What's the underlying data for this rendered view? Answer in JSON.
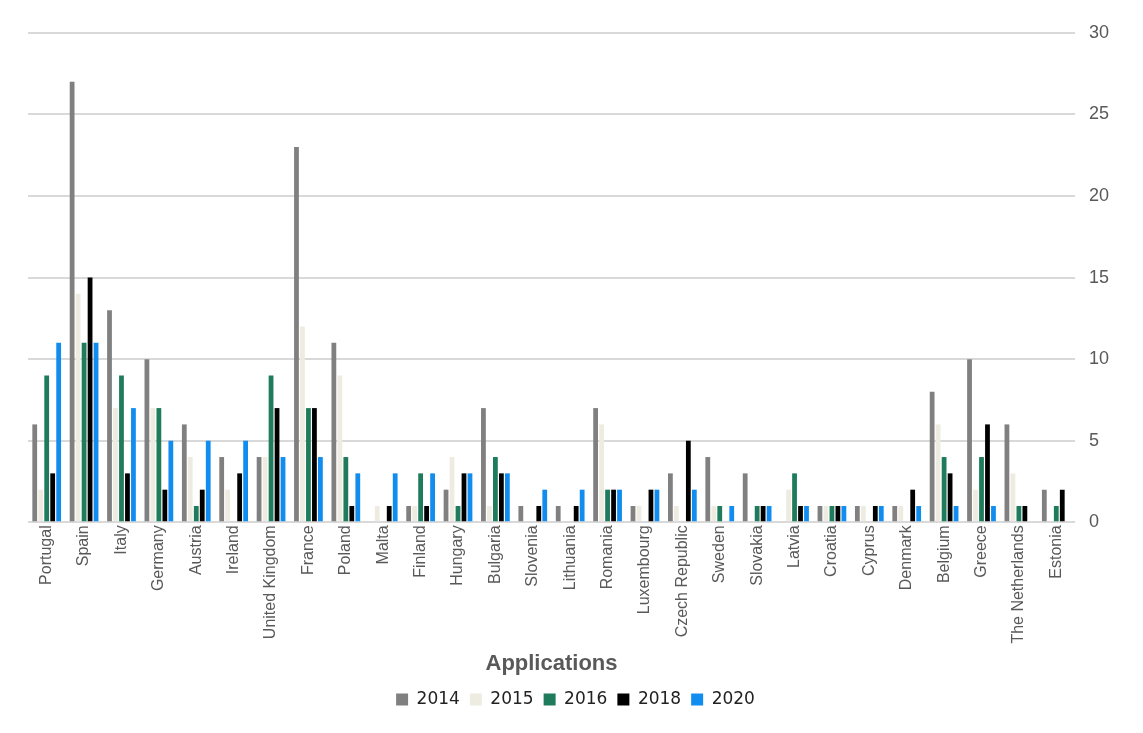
{
  "chart_data": {
    "type": "bar",
    "xlabel": "Applications",
    "categories": [
      "Portugal",
      "Spain",
      "Italy",
      "Germany",
      "Austria",
      "Ireland",
      "United Kingdom",
      "France",
      "Poland",
      "Malta",
      "Finland",
      "Hungary",
      "Bulgaria",
      "Slovenia",
      "Lithuania",
      "Romania",
      "Luxembourg",
      "Czech Republic",
      "Sweden",
      "Slovakia",
      "Latvia",
      "Croatia",
      "Cyprus",
      "Denmark",
      "Belgium",
      "Greece",
      "The Netherlands",
      "Estonia"
    ],
    "series": [
      {
        "name": "2014",
        "color": "#808080",
        "values": [
          6,
          27,
          13,
          10,
          6,
          4,
          4,
          23,
          11,
          0,
          1,
          2,
          7,
          1,
          1,
          7,
          1,
          3,
          4,
          3,
          0,
          1,
          1,
          1,
          8,
          10,
          6,
          2
        ]
      },
      {
        "name": "2015",
        "color": "#eeece1",
        "values": [
          2,
          14,
          7,
          7,
          4,
          2,
          4,
          12,
          9,
          1,
          1,
          4,
          1,
          0,
          0,
          6,
          1,
          1,
          1,
          0,
          2,
          1,
          1,
          1,
          6,
          2,
          3,
          0
        ]
      },
      {
        "name": "2016",
        "color": "#1e7b5b",
        "values": [
          9,
          11,
          9,
          7,
          1,
          0,
          9,
          7,
          4,
          0,
          3,
          1,
          4,
          0,
          0,
          2,
          0,
          0,
          1,
          1,
          3,
          1,
          0,
          0,
          4,
          4,
          1,
          1
        ]
      },
      {
        "name": "2018",
        "color": "#000000",
        "values": [
          3,
          15,
          3,
          2,
          2,
          3,
          7,
          7,
          1,
          1,
          1,
          3,
          3,
          1,
          1,
          2,
          2,
          5,
          0,
          1,
          1,
          1,
          1,
          2,
          3,
          6,
          1,
          2
        ]
      },
      {
        "name": "2020",
        "color": "#118df0",
        "values": [
          11,
          11,
          7,
          5,
          5,
          5,
          4,
          4,
          3,
          3,
          3,
          3,
          3,
          2,
          2,
          2,
          2,
          2,
          1,
          1,
          1,
          1,
          1,
          1,
          1,
          1,
          0,
          0
        ]
      }
    ],
    "ylim": [
      0,
      30
    ],
    "yticks": [
      0,
      5,
      10,
      15,
      20,
      25,
      30
    ],
    "grid": "y",
    "legend": "bottom"
  }
}
